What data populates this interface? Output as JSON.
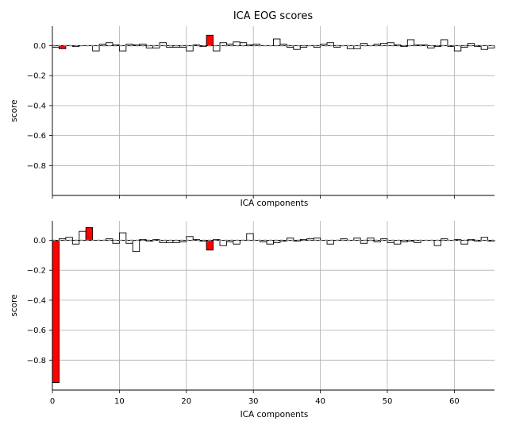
{
  "title": "ICA EOG scores",
  "colors": {
    "bar_normal": "#ffffff",
    "bar_excluded": "#ff0000",
    "edge": "#000000",
    "grid": "#b0b0b0",
    "baseline": "#808080"
  },
  "chart_data": [
    {
      "type": "bar",
      "title": "ICA EOG scores",
      "xlabel": "ICA components",
      "ylabel": "score",
      "xlim": [
        0,
        66
      ],
      "ylim": [
        -1.0,
        0.13
      ],
      "xticks": [
        0,
        10,
        20,
        30,
        40,
        50,
        60
      ],
      "yticks": [
        -0.8,
        -0.6,
        -0.4,
        -0.2,
        0.0
      ],
      "ytick_labels": [
        "−0.8",
        "−0.6",
        "−0.4",
        "−0.2",
        "0.0"
      ],
      "show_xtick_labels": false,
      "grid": true,
      "excluded_components": [
        1,
        23
      ],
      "values": [
        -0.01,
        -0.02,
        0.0,
        -0.005,
        0.0,
        0.0,
        -0.035,
        0.01,
        0.02,
        0.005,
        -0.035,
        0.01,
        0.005,
        0.01,
        -0.015,
        -0.015,
        0.02,
        -0.01,
        -0.01,
        -0.01,
        -0.035,
        0.005,
        -0.005,
        0.07,
        -0.035,
        0.02,
        0.01,
        0.025,
        0.02,
        0.005,
        0.01,
        0.0,
        0.0,
        0.045,
        0.01,
        -0.01,
        -0.025,
        -0.01,
        0.0,
        -0.01,
        0.01,
        0.02,
        -0.01,
        0.0,
        -0.02,
        -0.02,
        0.015,
        0.0,
        0.01,
        0.015,
        0.02,
        0.005,
        -0.005,
        0.04,
        0.005,
        0.005,
        -0.015,
        -0.005,
        0.04,
        -0.005,
        -0.035,
        -0.01,
        0.015,
        -0.005,
        -0.025,
        -0.015
      ]
    },
    {
      "type": "bar",
      "title": "",
      "xlabel": "ICA components",
      "ylabel": "score",
      "xlim": [
        0,
        66
      ],
      "ylim": [
        -1.0,
        0.13
      ],
      "xticks": [
        0,
        10,
        20,
        30,
        40,
        50,
        60
      ],
      "yticks": [
        -0.8,
        -0.6,
        -0.4,
        -0.2,
        0.0
      ],
      "ytick_labels": [
        "−0.8",
        "−0.6",
        "−0.4",
        "−0.2",
        "0.0"
      ],
      "show_xtick_labels": true,
      "grid": true,
      "excluded_components": [
        0,
        5,
        23
      ],
      "values": [
        -0.95,
        0.01,
        0.02,
        -0.025,
        0.06,
        0.085,
        0.0,
        0.0,
        0.01,
        -0.02,
        0.05,
        -0.02,
        -0.075,
        0.005,
        -0.005,
        0.005,
        -0.015,
        -0.015,
        -0.015,
        -0.01,
        0.025,
        0.005,
        -0.005,
        -0.065,
        0.005,
        -0.035,
        -0.01,
        -0.025,
        0.0,
        0.045,
        0.0,
        -0.01,
        -0.025,
        -0.015,
        -0.005,
        0.015,
        -0.005,
        0.005,
        0.01,
        0.015,
        0.0,
        -0.025,
        0.0,
        0.01,
        0.0,
        0.015,
        -0.02,
        0.015,
        -0.01,
        0.01,
        -0.015,
        -0.025,
        -0.01,
        -0.005,
        -0.015,
        0.0,
        0.0,
        -0.035,
        0.01,
        0.0,
        0.005,
        -0.025,
        0.005,
        -0.005,
        0.02,
        -0.005
      ]
    }
  ]
}
